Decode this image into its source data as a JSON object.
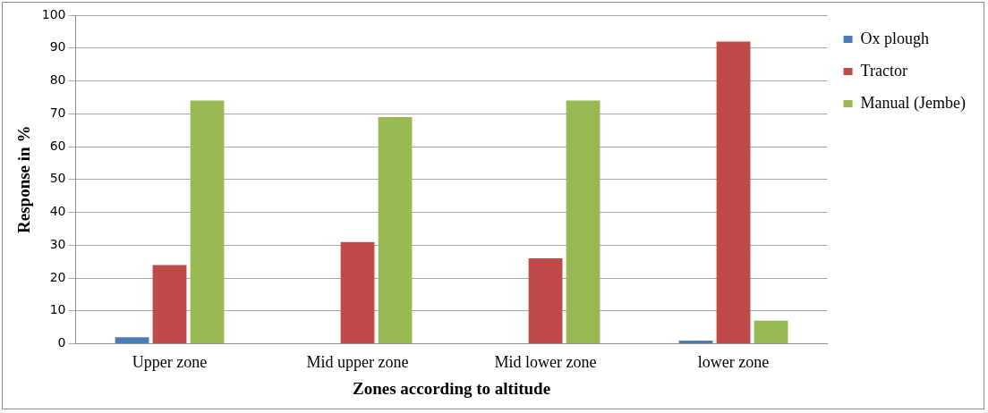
{
  "chart_data": {
    "type": "bar",
    "xlabel": "Zones according to altitude",
    "ylabel": "Response in %",
    "categories": [
      "Upper zone",
      "Mid upper zone",
      "Mid lower zone",
      "lower zone"
    ],
    "series": [
      {
        "name": "Ox plough",
        "color": "#4a7ebb",
        "values": [
          2,
          0,
          0,
          1
        ]
      },
      {
        "name": "Tractor",
        "color": "#be4b48",
        "values": [
          24,
          31,
          26,
          92
        ]
      },
      {
        "name": "Manual (Jembe)",
        "color": "#98b954",
        "values": [
          74,
          69,
          74,
          7
        ]
      }
    ],
    "ylim": [
      0,
      100
    ],
    "yticks": [
      0,
      10,
      20,
      30,
      40,
      50,
      60,
      70,
      80,
      90,
      100
    ],
    "grid": "y",
    "legend": "right"
  }
}
